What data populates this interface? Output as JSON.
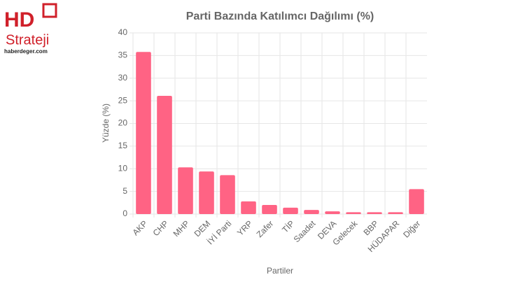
{
  "logo": {
    "mark": "HD",
    "name": "Strateji",
    "site": "haberdeger.com"
  },
  "chart_data": {
    "type": "bar",
    "title": "Parti Bazında Katılımcı Dağılımı (%)",
    "x_label": "Partiler",
    "y_label": "Yüzde (%)",
    "categories": [
      "AKP",
      "CHP",
      "MHP",
      "DEM",
      "İYİ Parti",
      "YRP",
      "Zafer",
      "TİP",
      "Saadet",
      "DEVA",
      "Gelecek",
      "BBP",
      "HÜDAPAR",
      "Diğer"
    ],
    "values": [
      35.8,
      26.1,
      10.3,
      9.4,
      8.6,
      2.8,
      2.0,
      1.4,
      0.9,
      0.6,
      0.4,
      0.4,
      0.4,
      5.5
    ],
    "color": "#ff6384",
    "ylim": [
      0,
      40
    ],
    "yticks": [
      0,
      5,
      10,
      15,
      20,
      25,
      30,
      35,
      40
    ],
    "grid": true
  }
}
